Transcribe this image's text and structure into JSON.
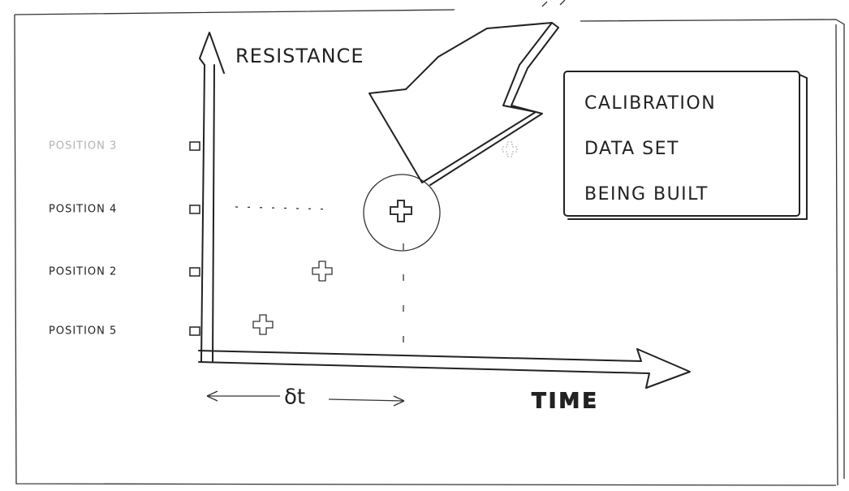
{
  "axes": {
    "y_label": "RESISTANCE",
    "x_label": "TIME",
    "interval_label": "δt"
  },
  "positions": [
    "POSITION 3",
    "POSITION 4",
    "POSITION 2",
    "POSITION 5"
  ],
  "callout": {
    "lines": [
      "CALIBRATION",
      "DATA SET",
      "BEING BUILT"
    ]
  }
}
